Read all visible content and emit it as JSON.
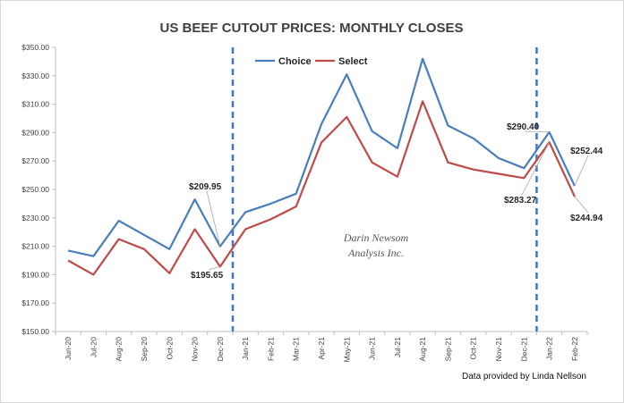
{
  "chart_data": {
    "type": "line",
    "title": "US BEEF CUTOUT PRICES: MONTHLY CLOSES",
    "categories": [
      "Jun-20",
      "Jul-20",
      "Aug-20",
      "Sep-20",
      "Oct-20",
      "Nov-20",
      "Dec-20",
      "Jan-21",
      "Feb-21",
      "Mar-21",
      "Apr-21",
      "May-21",
      "Jun-21",
      "Jul-21",
      "Aug-21",
      "Sep-21",
      "Oct-21",
      "Nov-21",
      "Dec-21",
      "Jan-22",
      "Feb-22"
    ],
    "series": [
      {
        "name": "Choice",
        "color": "#4A7EBB",
        "values": [
          207,
          203,
          228,
          218,
          208,
          243,
          209.95,
          234,
          240,
          247,
          296,
          331,
          291,
          279,
          342,
          295,
          286,
          272,
          265,
          290.4,
          252.44
        ]
      },
      {
        "name": "Select",
        "color": "#BE4B48",
        "values": [
          200,
          190,
          215,
          208,
          191,
          222,
          195.65,
          222,
          229,
          238,
          283,
          301,
          269,
          259,
          312,
          269,
          264,
          261,
          258,
          283.27,
          244.94
        ]
      }
    ],
    "ylim": [
      150,
      350
    ],
    "yticks": [
      150,
      170,
      190,
      210,
      230,
      250,
      270,
      290,
      310,
      330,
      350
    ],
    "ytick_labels": [
      "$150.00",
      "$170.00",
      "$190.00",
      "$210.00",
      "$230.00",
      "$250.00",
      "$270.00",
      "$290.00",
      "$310.00",
      "$330.00",
      "$350.00"
    ],
    "legend_position": "top-center",
    "grid": false,
    "vertical_markers": [
      {
        "between": [
          "Dec-20",
          "Jan-21"
        ],
        "style": "dashed",
        "color": "#4472C4"
      },
      {
        "between": [
          "Dec-21",
          "Jan-22"
        ],
        "style": "dashed",
        "color": "#4472C4"
      }
    ],
    "annotations": [
      {
        "text": "$209.95",
        "series": "Choice",
        "category": "Dec-20"
      },
      {
        "text": "$195.65",
        "series": "Select",
        "category": "Dec-20"
      },
      {
        "text": "$290.40",
        "series": "Choice",
        "category": "Jan-22"
      },
      {
        "text": "$283.27",
        "series": "Select",
        "category": "Jan-22"
      },
      {
        "text": "$252.44",
        "series": "Choice",
        "category": "Feb-22"
      },
      {
        "text": "$244.94",
        "series": "Select",
        "category": "Feb-22"
      }
    ],
    "watermark": [
      "Darin Newsom",
      "Analysis Inc."
    ],
    "credit": "Data provided by Linda Nellson"
  }
}
